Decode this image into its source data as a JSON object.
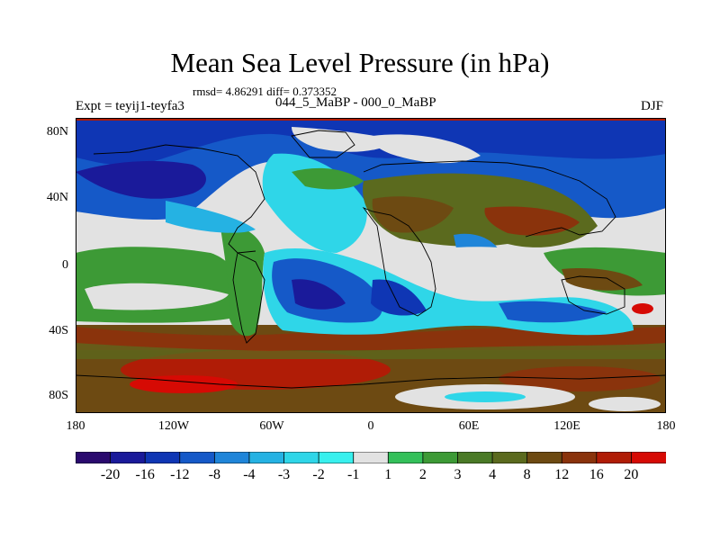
{
  "figure": {
    "title": "Mean Sea Level Pressure (in hPa)",
    "stats": "rmsd= 4.86291 diff= 0.373352",
    "subtitle": "044_5_MaBP - 000_0_MaBP",
    "experiment": "Expt = teyij1-teyfa3",
    "season": "DJF"
  },
  "axes": {
    "y_labels": [
      "80N",
      "40N",
      "0",
      "40S",
      "80S"
    ],
    "x_labels": [
      "180",
      "120W",
      "60W",
      "0",
      "60E",
      "120E",
      "180"
    ]
  },
  "legend": {
    "colors": [
      "#2a0a6e",
      "#1a1a9a",
      "#0f36b4",
      "#1559c8",
      "#1f85d9",
      "#25b2e3",
      "#2fd6e8",
      "#38f0ee",
      "#e2e2e2",
      "#34c05a",
      "#3d9a36",
      "#4a7a26",
      "#5b6a1e",
      "#6d4a12",
      "#8a330c",
      "#b01c06",
      "#d60a04"
    ],
    "labels": [
      "-20",
      "-16",
      "-12",
      "-8",
      "-4",
      "-3",
      "-2",
      "-1",
      "1",
      "2",
      "3",
      "4",
      "8",
      "12",
      "16",
      "20"
    ]
  },
  "colors": {
    "negative_strong": "#0f36b4",
    "near_zero": "#e2e2e2",
    "positive_mid": "#4a7a26",
    "positive_strong": "#b01c06"
  }
}
